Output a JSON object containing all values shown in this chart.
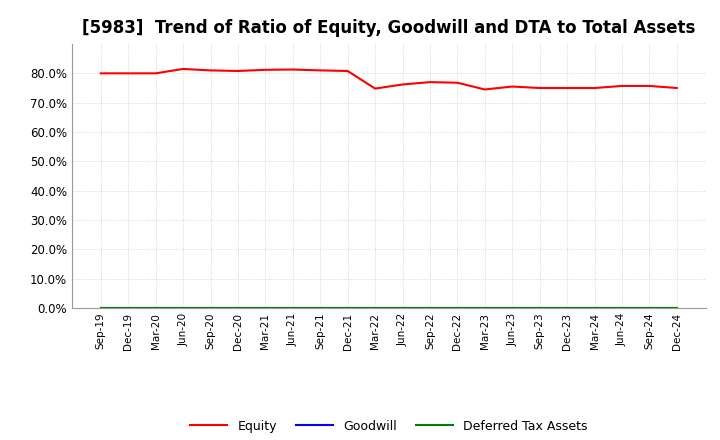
{
  "title": "[5983]  Trend of Ratio of Equity, Goodwill and DTA to Total Assets",
  "x_labels": [
    "Sep-19",
    "Dec-19",
    "Mar-20",
    "Jun-20",
    "Sep-20",
    "Dec-20",
    "Mar-21",
    "Jun-21",
    "Sep-21",
    "Dec-21",
    "Mar-22",
    "Jun-22",
    "Sep-22",
    "Dec-22",
    "Mar-23",
    "Jun-23",
    "Sep-23",
    "Dec-23",
    "Mar-24",
    "Jun-24",
    "Sep-24",
    "Dec-24"
  ],
  "equity": [
    0.8,
    0.8,
    0.8,
    0.815,
    0.81,
    0.808,
    0.812,
    0.813,
    0.81,
    0.808,
    0.748,
    0.762,
    0.77,
    0.768,
    0.745,
    0.755,
    0.75,
    0.75,
    0.75,
    0.757,
    0.757,
    0.75
  ],
  "goodwill": [
    0.0,
    0.0,
    0.0,
    0.0,
    0.0,
    0.0,
    0.0,
    0.0,
    0.0,
    0.0,
    0.0,
    0.0,
    0.0,
    0.0,
    0.0,
    0.0,
    0.0,
    0.0,
    0.0,
    0.0,
    0.0,
    0.0
  ],
  "dta": [
    0.0,
    0.0,
    0.0,
    0.0,
    0.0,
    0.0,
    0.0,
    0.0,
    0.0,
    0.0,
    0.0,
    0.0,
    0.0,
    0.0,
    0.0,
    0.0,
    0.0,
    0.0,
    0.0,
    0.0,
    0.0,
    0.0
  ],
  "equity_color": "#FF0000",
  "goodwill_color": "#0000FF",
  "dta_color": "#008000",
  "ylim": [
    0.0,
    0.9
  ],
  "yticks": [
    0.0,
    0.1,
    0.2,
    0.3,
    0.4,
    0.5,
    0.6,
    0.7,
    0.8
  ],
  "background_color": "#FFFFFF",
  "grid_color": "#CCCCCC",
  "title_fontsize": 12,
  "legend_labels": [
    "Equity",
    "Goodwill",
    "Deferred Tax Assets"
  ]
}
